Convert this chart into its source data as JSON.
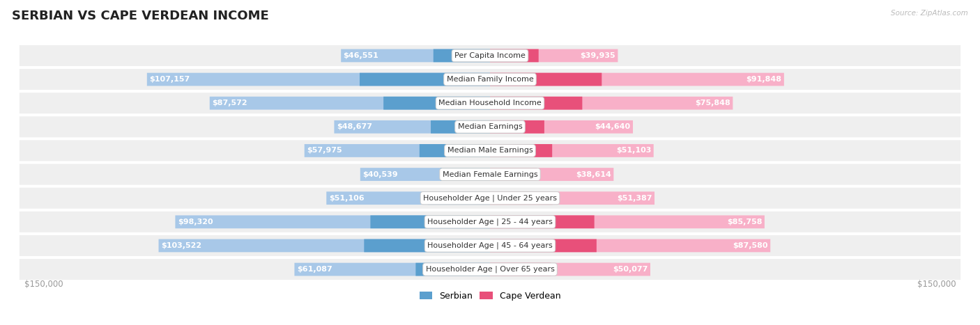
{
  "title": "SERBIAN VS CAPE VERDEAN INCOME",
  "source": "Source: ZipAtlas.com",
  "categories": [
    "Per Capita Income",
    "Median Family Income",
    "Median Household Income",
    "Median Earnings",
    "Median Male Earnings",
    "Median Female Earnings",
    "Householder Age | Under 25 years",
    "Householder Age | 25 - 44 years",
    "Householder Age | 45 - 64 years",
    "Householder Age | Over 65 years"
  ],
  "serbian_values": [
    46551,
    107157,
    87572,
    48677,
    57975,
    40539,
    51106,
    98320,
    103522,
    61087
  ],
  "capeverdean_values": [
    39935,
    91848,
    75848,
    44640,
    51103,
    38614,
    51387,
    85758,
    87580,
    50077
  ],
  "serbian_color_light": "#a8c8e8",
  "serbian_color_dark": "#5b9fce",
  "capeverdean_color_light": "#f8b0c8",
  "capeverdean_color_dark": "#e8507a",
  "max_value": 150000,
  "bg_color": "#ffffff",
  "row_bg_color": "#efefef",
  "title_fontsize": 13,
  "label_fontsize": 8.0,
  "category_fontsize": 8.0,
  "axis_label_fontsize": 8.5,
  "legend_fontsize": 9,
  "inside_label_threshold": 30000
}
